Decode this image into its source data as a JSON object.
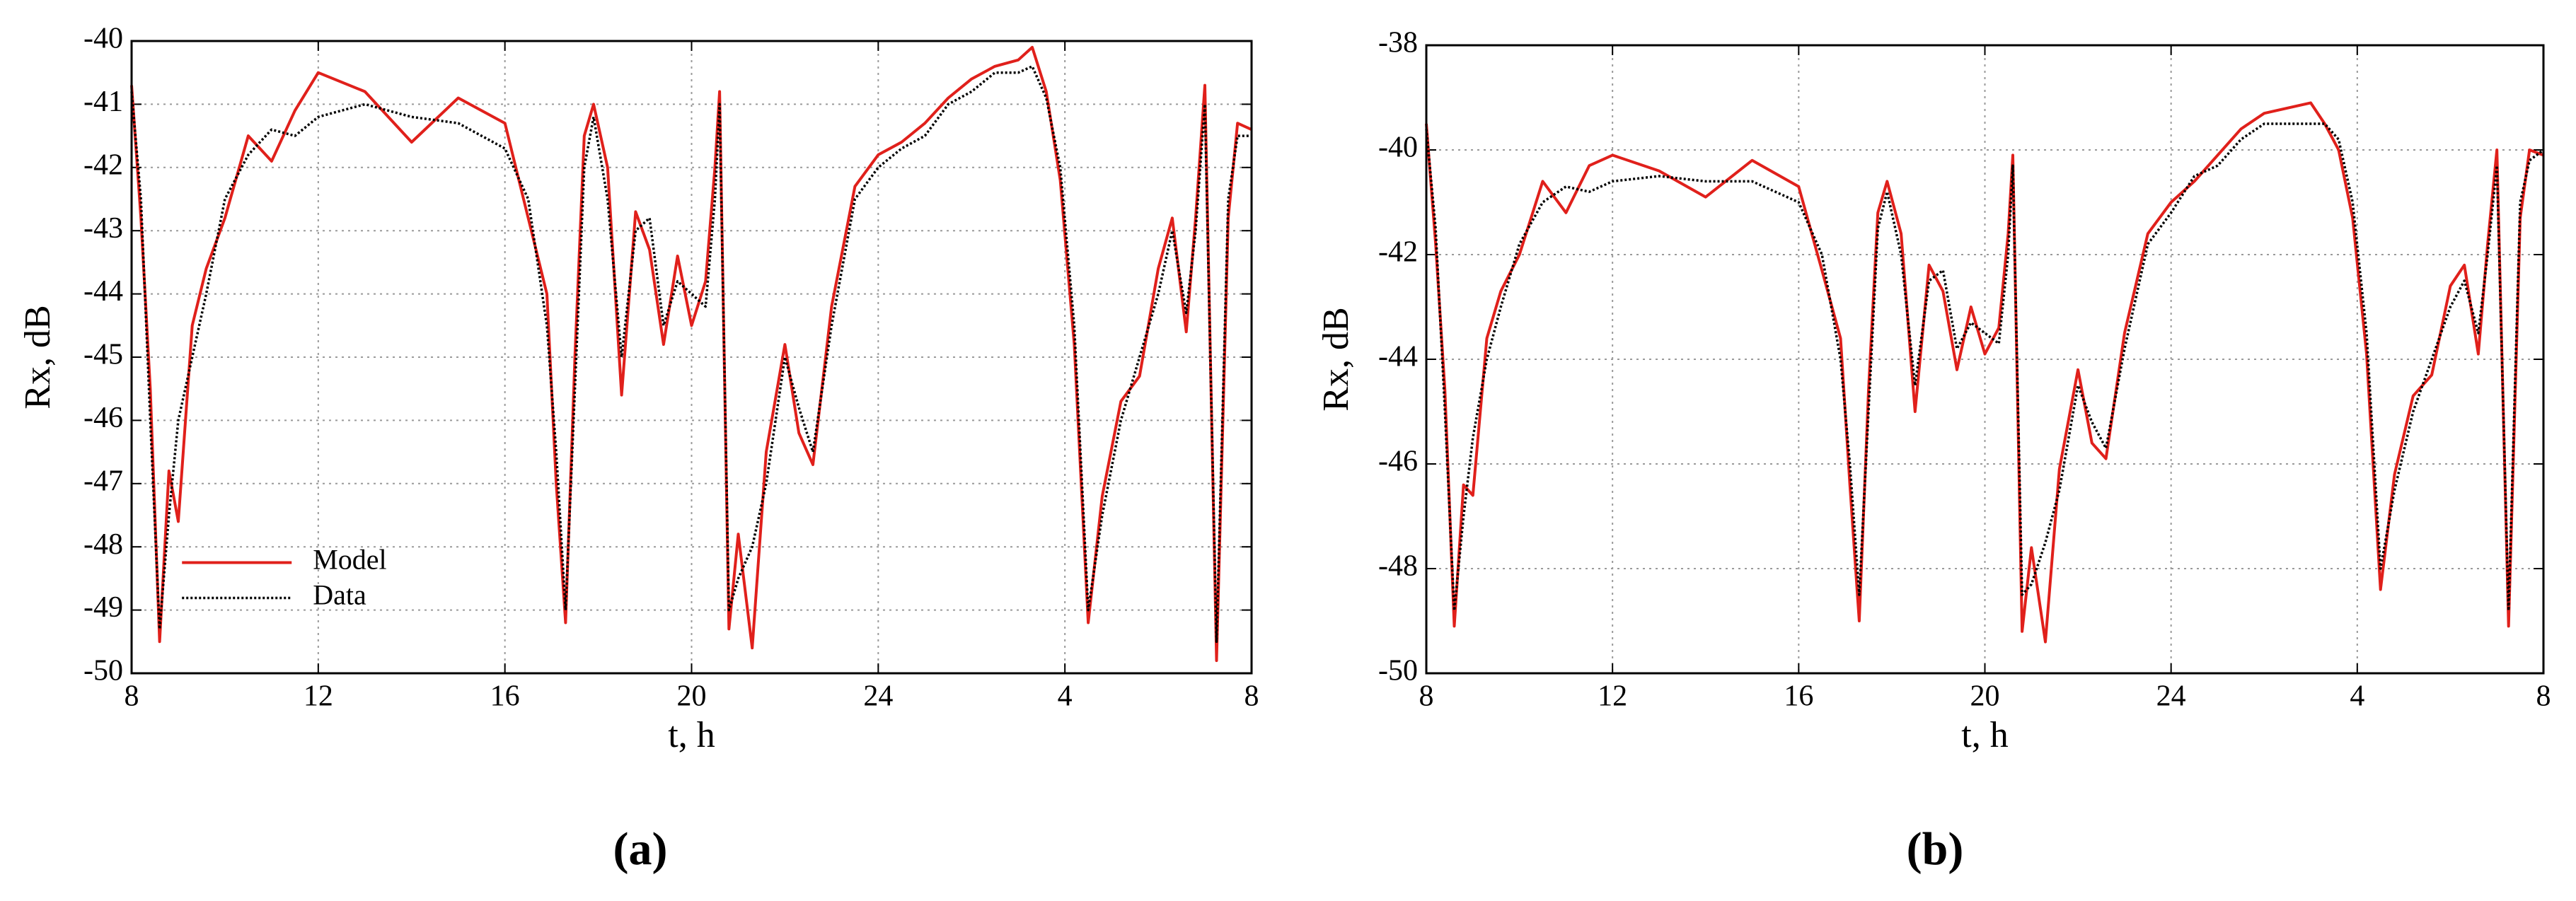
{
  "chart_data": [
    {
      "type": "line",
      "caption": "(a)",
      "x_label": "t, h",
      "y_label": "Rx, dB",
      "x": [
        8,
        8.2,
        8.4,
        8.6,
        8.8,
        9,
        9.3,
        9.6,
        10,
        10.5,
        11,
        11.5,
        12,
        13,
        14,
        15,
        16,
        16.5,
        16.9,
        17.1,
        17.3,
        17.5,
        17.7,
        17.9,
        18.2,
        18.5,
        18.8,
        19.1,
        19.4,
        19.7,
        20,
        20.3,
        20.5,
        20.6,
        20.8,
        21,
        21.3,
        21.6,
        22,
        22.3,
        22.6,
        23,
        23.5,
        24,
        24.5,
        25,
        25.5,
        26,
        26.5,
        27,
        27.3,
        27.6,
        27.9,
        28.2,
        28.5,
        28.8,
        29.2,
        29.6,
        30,
        30.3,
        30.6,
        30.8,
        31,
        31.25,
        31.5,
        31.7,
        32
      ],
      "series": [
        {
          "name": "Model",
          "color": "#e0201b",
          "style": "solid",
          "values": [
            -40.7,
            -42.8,
            -45.5,
            -49.5,
            -46.8,
            -47.6,
            -44.5,
            -43.6,
            -42.8,
            -41.5,
            -41.9,
            -41.1,
            -40.5,
            -40.8,
            -41.6,
            -40.9,
            -41.3,
            -42.8,
            -44,
            -47,
            -49.2,
            -45,
            -41.5,
            -41,
            -42,
            -45.6,
            -42.7,
            -43.3,
            -44.8,
            -43.4,
            -44.5,
            -43.8,
            -42,
            -40.8,
            -49.3,
            -47.8,
            -49.6,
            -46.5,
            -44.8,
            -46.2,
            -46.7,
            -44.2,
            -42.3,
            -41.8,
            -41.6,
            -41.3,
            -40.9,
            -40.6,
            -40.4,
            -40.3,
            -40.1,
            -40.8,
            -42.2,
            -44.8,
            -49.2,
            -47.2,
            -45.7,
            -45.3,
            -43.6,
            -42.8,
            -44.6,
            -42.8,
            -40.7,
            -49.8,
            -42.8,
            -41.3,
            -41.4
          ]
        },
        {
          "name": "Data",
          "color": "#000000",
          "style": "dotted",
          "values": [
            -40.8,
            -42.5,
            -46,
            -49.3,
            -47.5,
            -46,
            -45,
            -44,
            -42.5,
            -41.8,
            -41.4,
            -41.5,
            -41.2,
            -41,
            -41.2,
            -41.3,
            -41.7,
            -42.5,
            -44.5,
            -46.5,
            -49,
            -45.5,
            -42,
            -41.2,
            -42.5,
            -45,
            -43,
            -42.8,
            -44.5,
            -43.8,
            -44,
            -44.2,
            -42.5,
            -41,
            -49,
            -48.5,
            -48,
            -47,
            -45,
            -45.8,
            -46.5,
            -44.5,
            -42.5,
            -42,
            -41.7,
            -41.5,
            -41,
            -40.8,
            -40.5,
            -40.5,
            -40.4,
            -40.9,
            -42,
            -44.5,
            -49,
            -47.5,
            -46,
            -45,
            -44,
            -43,
            -44.3,
            -43,
            -41,
            -49.5,
            -42.5,
            -41.5,
            -41.5
          ]
        }
      ],
      "xlim": [
        8,
        32
      ],
      "xticks": [
        8,
        12,
        16,
        20,
        24,
        {
          "value": 28,
          "label": "4"
        },
        {
          "value": 32,
          "label": "8"
        }
      ],
      "ylim": [
        -50,
        -40
      ],
      "yticks": [
        -50,
        -49,
        -48,
        -47,
        -46,
        -45,
        -44,
        -43,
        -42,
        -41,
        -40
      ],
      "grid": true,
      "legend": "lower left"
    },
    {
      "type": "line",
      "caption": "(b)",
      "x_label": "t, h",
      "y_label": "Rx, dB",
      "x": [
        8,
        8.2,
        8.4,
        8.6,
        8.8,
        9,
        9.3,
        9.6,
        10,
        10.5,
        11,
        11.5,
        12,
        13,
        14,
        15,
        16,
        16.5,
        16.9,
        17.1,
        17.3,
        17.5,
        17.7,
        17.9,
        18.2,
        18.5,
        18.8,
        19.1,
        19.4,
        19.7,
        20,
        20.3,
        20.5,
        20.6,
        20.8,
        21,
        21.3,
        21.6,
        22,
        22.3,
        22.6,
        23,
        23.5,
        24,
        24.5,
        25,
        25.5,
        26,
        26.5,
        27,
        27.3,
        27.6,
        27.9,
        28.2,
        28.5,
        28.8,
        29.2,
        29.6,
        30,
        30.3,
        30.6,
        30.8,
        31,
        31.25,
        31.5,
        31.7,
        32
      ],
      "series": [
        {
          "color": "#e0201b",
          "style": "solid",
          "values": [
            -39.5,
            -41.8,
            -44.6,
            -49.1,
            -46.4,
            -46.6,
            -43.6,
            -42.7,
            -42,
            -40.6,
            -41.2,
            -40.3,
            -40.1,
            -40.4,
            -40.9,
            -40.2,
            -40.7,
            -42.3,
            -43.6,
            -46.4,
            -49,
            -44.6,
            -41.2,
            -40.6,
            -41.6,
            -45,
            -42.2,
            -42.7,
            -44.2,
            -43,
            -43.9,
            -43.4,
            -41.6,
            -40.1,
            -49.2,
            -47.6,
            -49.4,
            -46.1,
            -44.2,
            -45.6,
            -45.9,
            -43.5,
            -41.6,
            -41,
            -40.6,
            -40.1,
            -39.6,
            -39.3,
            -39.2,
            -39.1,
            -39.5,
            -40,
            -41.3,
            -43.9,
            -48.4,
            -46.2,
            -44.7,
            -44.3,
            -42.6,
            -42.2,
            -43.9,
            -41.8,
            -40,
            -49.1,
            -41.3,
            -40,
            -40.1
          ]
        },
        {
          "color": "#000000",
          "style": "dotted",
          "values": [
            -39.6,
            -41.5,
            -45,
            -48.8,
            -47,
            -45.5,
            -44,
            -43,
            -41.8,
            -41,
            -40.7,
            -40.8,
            -40.6,
            -40.5,
            -40.6,
            -40.6,
            -41,
            -42,
            -44,
            -46,
            -48.5,
            -45,
            -41.5,
            -40.8,
            -42,
            -44.5,
            -42.5,
            -42.3,
            -43.8,
            -43.3,
            -43.5,
            -43.7,
            -42,
            -40.3,
            -48.5,
            -48.3,
            -47.5,
            -46.5,
            -44.5,
            -45.2,
            -45.7,
            -43.8,
            -41.8,
            -41.2,
            -40.5,
            -40.3,
            -39.8,
            -39.5,
            -39.5,
            -39.5,
            -39.5,
            -39.8,
            -41,
            -43.5,
            -48,
            -46.5,
            -45,
            -44,
            -43,
            -42.5,
            -43.5,
            -42,
            -40.3,
            -48.8,
            -41,
            -40.2,
            -40
          ]
        }
      ],
      "xlim": [
        8,
        32
      ],
      "xticks": [
        8,
        12,
        16,
        20,
        24,
        {
          "value": 28,
          "label": "4"
        },
        {
          "value": 32,
          "label": "8"
        }
      ],
      "ylim": [
        -50,
        -38
      ],
      "yticks": [
        -50,
        -48,
        -46,
        -44,
        -42,
        -40,
        -38
      ],
      "grid": true
    }
  ]
}
